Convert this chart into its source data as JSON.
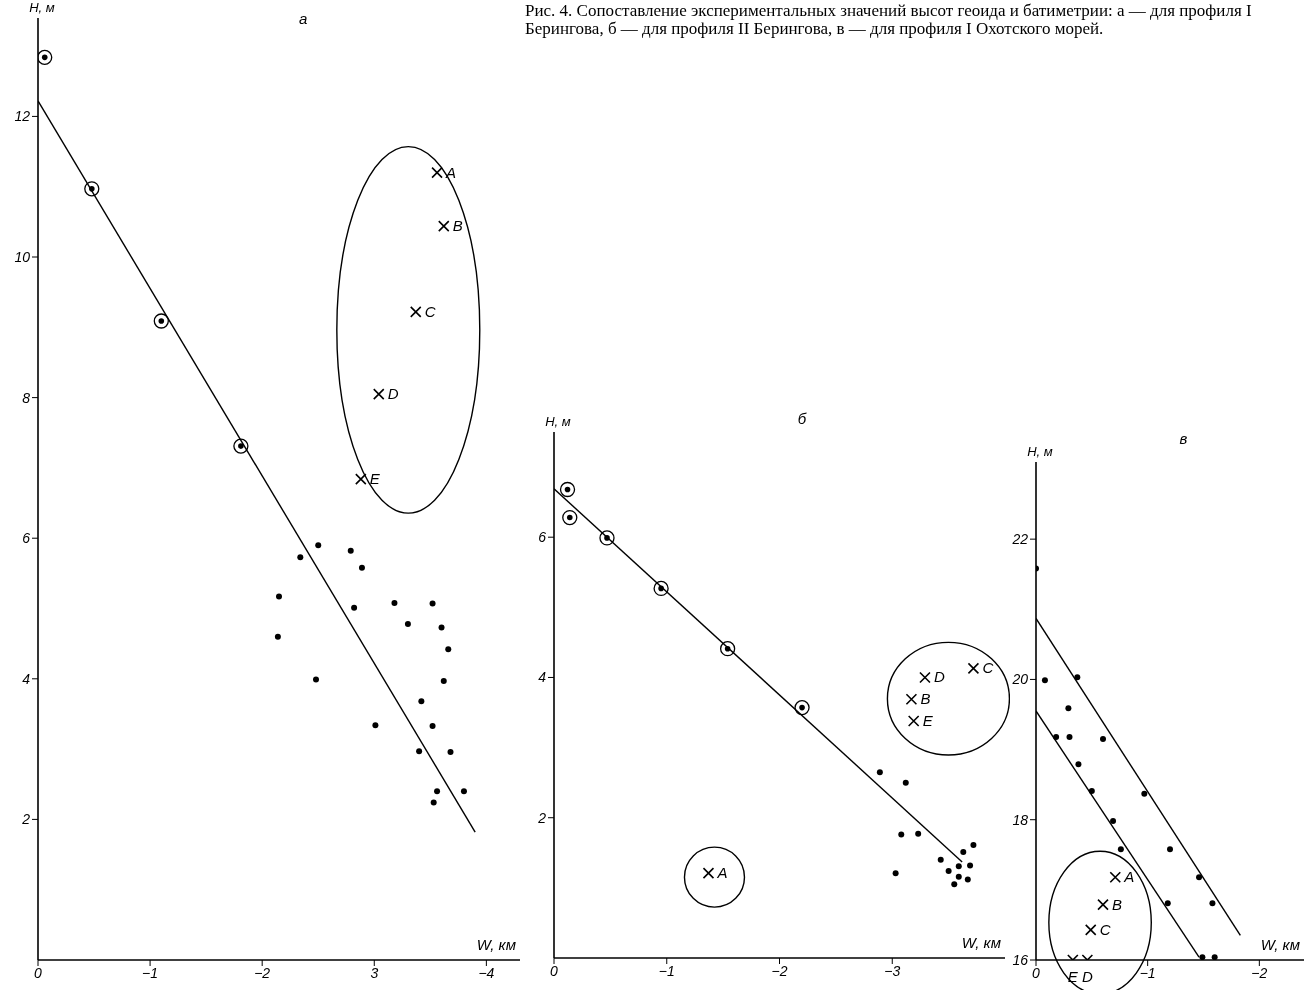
{
  "chart_data": [
    {
      "type": "scatter",
      "title": "а",
      "xlabel": "W, км",
      "ylabel": "H, м",
      "xlim": [
        0,
        -4.3
      ],
      "xticks": [
        0,
        -1,
        -2,
        {
          "value": -3,
          "label": "3"
        },
        -4
      ],
      "ylim": [
        0,
        13.4
      ],
      "yticks": [
        2,
        4,
        6,
        8,
        10,
        12
      ],
      "grid": false,
      "annotations": [
        "Рис. 4. Сопоставление экспериментальных значений высот геоида и батиметрии: а — для профиля I Берингова, б — для профиля II Берингова, в — для профиля I Охотского морей.",
        {
          "text": "A",
          "x": -3.56,
          "y": 11.2
        },
        {
          "text": "B",
          "x": -3.62,
          "y": 10.44
        },
        {
          "text": "C",
          "x": -3.37,
          "y": 9.22
        },
        {
          "text": "D",
          "x": -3.04,
          "y": 8.05
        },
        {
          "text": "E",
          "x": -2.88,
          "y": 6.84
        }
      ],
      "series": [
        {
          "color": "#000000",
          "marker": "circle",
          "x": [
            -0.06,
            -0.48,
            -1.1,
            -1.81
          ],
          "values": [
            12.84,
            10.97,
            9.09,
            7.31
          ]
        },
        {
          "color": "#000000",
          "x": [
            -2.15,
            -2.14,
            -2.34,
            -2.5,
            -2.48,
            -2.79,
            -2.89,
            -2.82,
            -3.18,
            -3.3,
            -3.01,
            -3.52,
            -3.6,
            -3.66,
            -3.62,
            -3.42,
            -3.52,
            -3.4,
            -3.68,
            -3.56,
            -3.53,
            -3.8
          ],
          "values": [
            5.17,
            4.6,
            5.73,
            5.9,
            3.99,
            5.82,
            5.58,
            5.01,
            5.08,
            4.78,
            3.34,
            5.07,
            4.73,
            4.42,
            3.97,
            3.68,
            3.33,
            2.97,
            2.96,
            2.4,
            2.24,
            2.4
          ]
        },
        {
          "color": "#000000",
          "marker": "cross",
          "x": [
            -3.56,
            -3.62,
            -3.37,
            -3.04,
            -2.88
          ],
          "values": [
            11.2,
            10.44,
            9.22,
            8.05,
            6.84
          ]
        },
        {
          "type": "line",
          "color": "#000000",
          "marker": "none",
          "x": [
            0,
            -3.9
          ],
          "values": [
            12.22,
            1.82
          ]
        }
      ]
    },
    {
      "type": "scatter",
      "title": "б",
      "xlabel": "W, км",
      "ylabel": "H, м",
      "xlim": [
        0,
        -4.0
      ],
      "xticks": [
        0,
        -1,
        -2,
        -3
      ],
      "ylim": [
        0,
        7.5
      ],
      "yticks": [
        2,
        4,
        6
      ],
      "grid": false,
      "annotations": [
        {
          "text": "A",
          "x": -1.37,
          "y": 1.21
        },
        {
          "text": "B",
          "x": -3.17,
          "y": 3.69
        },
        {
          "text": "D",
          "x": -3.29,
          "y": 4.0
        },
        {
          "text": "E",
          "x": -3.19,
          "y": 3.38
        },
        {
          "text": "C",
          "x": -3.72,
          "y": 4.13
        }
      ],
      "series": [
        {
          "color": "#000000",
          "marker": "circle",
          "x": [
            -0.12,
            -0.14,
            -0.47,
            -0.95,
            -1.54,
            -2.2
          ],
          "values": [
            6.68,
            6.28,
            5.99,
            5.27,
            4.41,
            3.57
          ]
        },
        {
          "color": "#000000",
          "x": [
            -2.89,
            -3.12,
            -3.08,
            -3.23,
            -3.03,
            -3.43,
            -3.5,
            -3.59,
            -3.63,
            -3.72,
            -3.69,
            -3.59,
            -3.67,
            -3.55
          ],
          "values": [
            2.65,
            2.5,
            1.76,
            1.77,
            1.21,
            1.4,
            1.24,
            1.31,
            1.51,
            1.61,
            1.32,
            1.16,
            1.12,
            1.05
          ]
        },
        {
          "color": "#000000",
          "marker": "cross",
          "x": [
            -1.37
          ],
          "values": [
            1.21
          ]
        },
        {
          "color": "#000000",
          "marker": "cross",
          "x": [
            -3.17,
            -3.29,
            -3.19,
            -3.72
          ],
          "values": [
            3.69,
            4.0,
            3.38,
            4.13
          ]
        },
        {
          "type": "line",
          "color": "#000000",
          "marker": "none",
          "x": [
            0,
            -3.62
          ],
          "values": [
            6.69,
            1.37
          ]
        }
      ]
    },
    {
      "type": "scatter",
      "title": "в",
      "xlabel": "W, км",
      "ylabel": "H, м",
      "xlim": [
        0,
        -2.4
      ],
      "xticks": [
        0,
        -1,
        -2
      ],
      "ylim": [
        16,
        23.1
      ],
      "yticks": [
        16,
        18,
        20,
        22
      ],
      "grid": false,
      "annotations": [
        {
          "text": "A",
          "x": -0.71,
          "y": 17.18
        },
        {
          "text": "B",
          "x": -0.6,
          "y": 16.79
        },
        {
          "text": "C",
          "x": -0.49,
          "y": 16.43
        },
        {
          "text": "E",
          "x": -0.33,
          "y": 16.0
        },
        {
          "text": "D",
          "x": -0.46,
          "y": 16.0
        }
      ],
      "series": [
        {
          "color": "#000000",
          "x": [
            0,
            -0.08,
            -0.37,
            -0.29,
            -0.18,
            -0.3,
            -0.6,
            -0.38,
            -0.5,
            -0.97,
            -0.69,
            -0.76,
            -1.2,
            -1.46,
            -1.18,
            -1.58,
            -1.49,
            -1.6
          ],
          "values": [
            21.58,
            19.99,
            20.03,
            19.59,
            19.18,
            19.18,
            19.15,
            18.79,
            18.41,
            18.37,
            17.98,
            17.58,
            17.58,
            17.18,
            16.81,
            16.81,
            16.04,
            16.04
          ]
        },
        {
          "color": "#000000",
          "marker": "cross",
          "x": [
            -0.71,
            -0.6,
            -0.49,
            -0.33,
            -0.46
          ],
          "values": [
            17.18,
            16.79,
            16.43,
            16.0,
            16.0
          ]
        },
        {
          "type": "line",
          "color": "#000000",
          "marker": "none",
          "x": [
            0,
            -1.83
          ],
          "values": [
            20.87,
            16.35
          ]
        },
        {
          "type": "line",
          "color": "#000000",
          "marker": "none",
          "x": [
            0,
            -1.46
          ],
          "values": [
            19.55,
            16.04
          ]
        }
      ]
    }
  ]
}
